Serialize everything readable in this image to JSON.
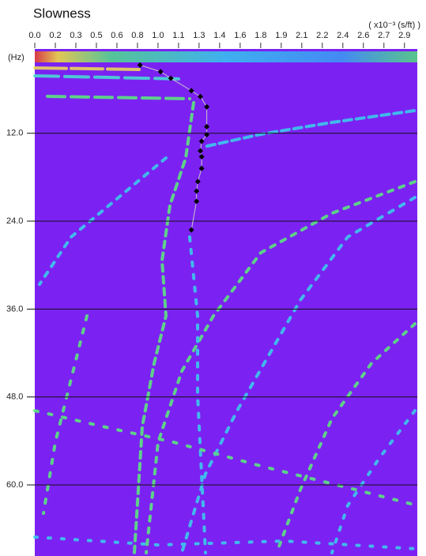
{
  "chart_data": {
    "type": "scatter",
    "title": "Slowness",
    "x_unit_label": "( x10⁻³ (s/ft) )",
    "y_label": "(Hz)",
    "x": [
      0.82,
      0.98,
      1.06,
      1.22,
      1.29,
      1.34,
      1.34,
      1.34,
      1.3,
      1.29,
      1.3,
      1.3,
      1.27,
      1.26,
      1.26,
      1.22
    ],
    "values": [
      2.7,
      3.6,
      4.5,
      6.2,
      7.0,
      8.4,
      11.1,
      12.2,
      13.1,
      14.4,
      15.2,
      16.8,
      18.6,
      19.9,
      21.3,
      25.2
    ],
    "color": "#000000",
    "line_color": "#c8c8c8",
    "background_color": "#7b22f2",
    "xlim": [
      0,
      2.98
    ],
    "ylim": [
      0.5,
      69.7
    ],
    "y_inverted": true,
    "grid": true,
    "xticks": [
      {
        "value": 0,
        "label": "0.0"
      },
      {
        "value": 0.16,
        "label": "0.2"
      },
      {
        "value": 0.32,
        "label": "0.3"
      },
      {
        "value": 0.48,
        "label": "0.5"
      },
      {
        "value": 0.64,
        "label": "0.6"
      },
      {
        "value": 0.8,
        "label": "0.8"
      },
      {
        "value": 0.96,
        "label": "1.0"
      },
      {
        "value": 1.12,
        "label": "1.1"
      },
      {
        "value": 1.28,
        "label": "1.3"
      },
      {
        "value": 1.44,
        "label": "1.4"
      },
      {
        "value": 1.6,
        "label": "1.6"
      },
      {
        "value": 1.76,
        "label": "1.8"
      },
      {
        "value": 1.92,
        "label": "1.9"
      },
      {
        "value": 2.08,
        "label": "2.1"
      },
      {
        "value": 2.24,
        "label": "2.2"
      },
      {
        "value": 2.4,
        "label": "2.4"
      },
      {
        "value": 2.56,
        "label": "2.6"
      },
      {
        "value": 2.72,
        "label": "2.7"
      },
      {
        "value": 2.88,
        "label": "2.9"
      }
    ],
    "yticks": [
      {
        "value": 12,
        "label": "12.0"
      },
      {
        "value": 24,
        "label": "24.0"
      },
      {
        "value": 36,
        "label": "36.0"
      },
      {
        "value": 48,
        "label": "48.0"
      },
      {
        "value": 60,
        "label": "60.0"
      }
    ]
  }
}
